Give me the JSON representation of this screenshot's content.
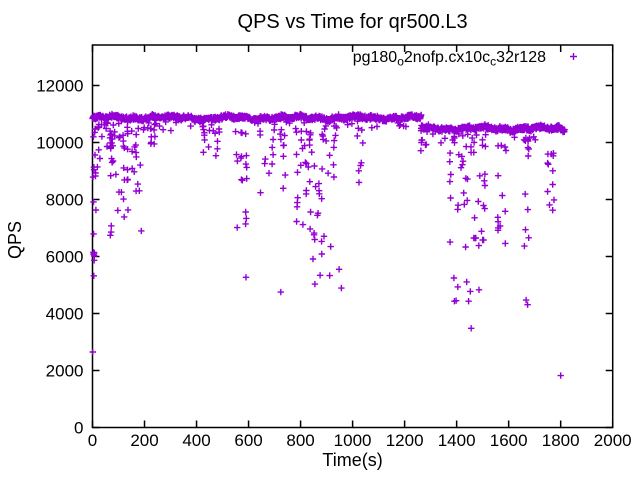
{
  "figure": {
    "background": "#ffffff"
  },
  "colors": {
    "marker": "#9400D3",
    "axis": "#000000",
    "text": "#000000",
    "background": "#ffffff"
  },
  "chart_data": {
    "type": "scatter",
    "title": "QPS vs Time for qr500.L3",
    "xlabel": "Time(s)",
    "ylabel": "QPS",
    "xlim": [
      0,
      2000
    ],
    "ylim": [
      0,
      12000
    ],
    "x_ticks": [
      0,
      200,
      400,
      600,
      800,
      1000,
      1200,
      1400,
      1600,
      1800,
      2000
    ],
    "y_ticks": [
      0,
      2000,
      4000,
      6000,
      8000,
      10000,
      12000
    ],
    "grid": false,
    "legend": {
      "position": "top-right-inside",
      "marker": "plus"
    },
    "series": [
      {
        "name": "pg180_o2nofp.cx10c_c32r128",
        "label_parts": [
          {
            "text": "pg180"
          },
          {
            "sub": "o"
          },
          {
            "text": "2nofp.cx10c"
          },
          {
            "sub": "c"
          },
          {
            "text": "32r128"
          }
        ],
        "marker": "plus",
        "color": "#9400D3",
        "seed": 1337,
        "band": {
          "t_start": 0,
          "t_end": 1815,
          "step": 1.25,
          "break_t": 1265,
          "center1": 10870,
          "center2": 10500,
          "drift": -0.03,
          "jitter": 115,
          "wiggle1": 40,
          "wiggle2": 30,
          "low_fringe_prob": 0.05,
          "low_fringe_depth": 430,
          "q_max": 11260
        },
        "dip_clusters": [
          [
            0,
            14,
            12,
            6300,
            10500
          ],
          [
            0,
            8,
            7,
            5250,
            6150
          ],
          [
            14,
            60,
            14,
            8600,
            10700
          ],
          [
            62,
            195,
            55,
            6600,
            10400
          ],
          [
            215,
            245,
            8,
            9600,
            10500
          ],
          [
            420,
            490,
            12,
            9200,
            10500
          ],
          [
            545,
            600,
            18,
            5900,
            10400
          ],
          [
            640,
            700,
            10,
            8200,
            10400
          ],
          [
            718,
            742,
            8,
            6300,
            10300
          ],
          [
            778,
            862,
            34,
            5750,
            10400
          ],
          [
            862,
            935,
            24,
            5300,
            10300
          ],
          [
            1008,
            1042,
            8,
            8350,
            10500
          ],
          [
            1258,
            1288,
            10,
            9550,
            10600
          ],
          [
            1368,
            1492,
            42,
            4400,
            10300
          ],
          [
            1493,
            1512,
            11,
            6550,
            10100
          ],
          [
            1552,
            1596,
            13,
            6300,
            9900
          ],
          [
            1658,
            1682,
            12,
            6030,
            10100
          ],
          [
            1743,
            1778,
            12,
            6310,
            9700
          ]
        ],
        "outliers": [
          [
            1,
            2650
          ],
          [
            590,
            5270
          ],
          [
            724,
            4750
          ],
          [
            855,
            5030
          ],
          [
            948,
            5550
          ],
          [
            957,
            4890
          ],
          [
            1398,
            4450
          ],
          [
            1446,
            4430
          ],
          [
            1456,
            3480
          ],
          [
            1667,
            4470
          ],
          [
            1673,
            4310
          ],
          [
            1800,
            1820
          ]
        ]
      }
    ]
  }
}
